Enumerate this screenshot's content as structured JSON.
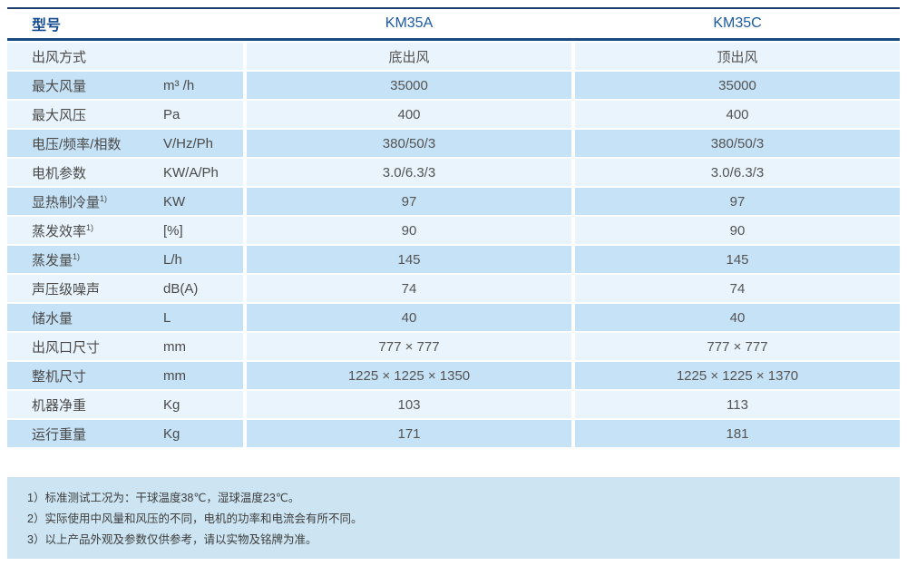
{
  "table": {
    "header": {
      "col_label": "型号",
      "col_a": "KM35A",
      "col_b": "KM35C"
    },
    "rows": [
      {
        "label": "出风方式",
        "sup": "",
        "unit": "",
        "km35a": "底出风",
        "km35c": "顶出风"
      },
      {
        "label": "最大风量",
        "sup": "",
        "unit": "m³ /h",
        "km35a": "35000",
        "km35c": "35000"
      },
      {
        "label": "最大风压",
        "sup": "",
        "unit": "Pa",
        "km35a": "400",
        "km35c": "400"
      },
      {
        "label": "电压/频率/相数",
        "sup": "",
        "unit": "V/Hz/Ph",
        "km35a": "380/50/3",
        "km35c": "380/50/3"
      },
      {
        "label": "电机参数",
        "sup": "",
        "unit": "KW/A/Ph",
        "km35a": "3.0/6.3/3",
        "km35c": "3.0/6.3/3"
      },
      {
        "label": "显热制冷量",
        "sup": "1)",
        "unit": "KW",
        "km35a": "97",
        "km35c": "97"
      },
      {
        "label": "蒸发效率",
        "sup": "1)",
        "unit": "[%]",
        "km35a": "90",
        "km35c": "90"
      },
      {
        "label": "蒸发量",
        "sup": "1)",
        "unit": "L/h",
        "km35a": "145",
        "km35c": "145"
      },
      {
        "label": "声压级噪声",
        "sup": "",
        "unit": "dB(A)",
        "km35a": "74",
        "km35c": "74"
      },
      {
        "label": "储水量",
        "sup": "",
        "unit": "L",
        "km35a": "40",
        "km35c": "40"
      },
      {
        "label": "出风口尺寸",
        "sup": "",
        "unit": "mm",
        "km35a": "777 × 777",
        "km35c": "777 × 777"
      },
      {
        "label": "整机尺寸",
        "sup": "",
        "unit": "mm",
        "km35a": "1225 × 1225 × 1350",
        "km35c": "1225 × 1225 × 1370"
      },
      {
        "label": "机器净重",
        "sup": "",
        "unit": "Kg",
        "km35a": "103",
        "km35c": "113"
      },
      {
        "label": "运行重量",
        "sup": "",
        "unit": "Kg",
        "km35a": "171",
        "km35c": "181"
      }
    ]
  },
  "notes": [
    "1）标准测试工况为：干球温度38℃，湿球温度23℃。",
    "2）实际使用中风量和风压的不同，电机的功率和电流会有所不同。",
    "3）以上产品外观及参数仅供参考，请以实物及铭牌为准。"
  ],
  "colors": {
    "rule_navy": "#1b3e6e",
    "header_text_blue": "#134a8e",
    "model_text_blue": "#1a5aa2",
    "row_light": "#e9f4fc",
    "row_medium": "#c6e2f6",
    "notes_panel": "#cde5f3"
  }
}
